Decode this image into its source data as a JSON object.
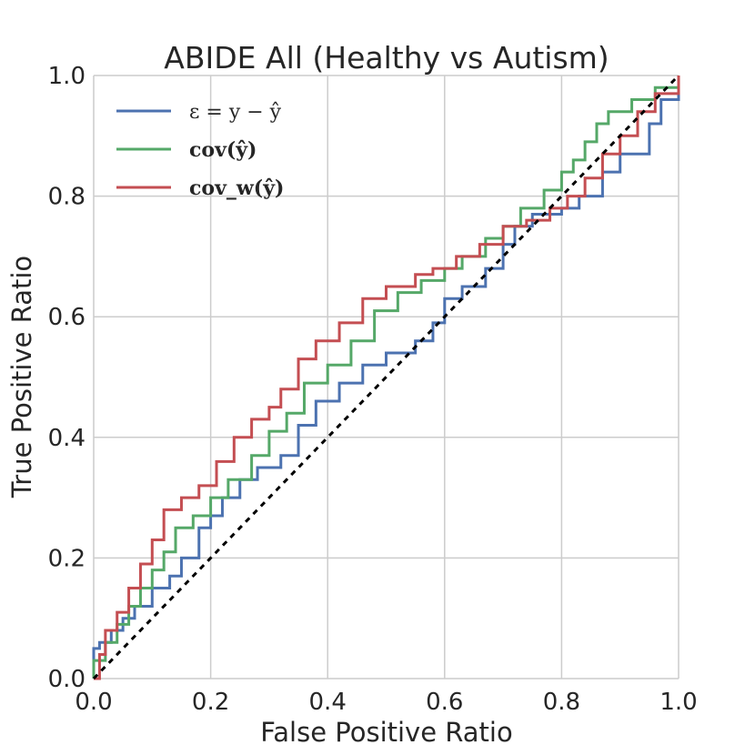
{
  "chart_data": {
    "type": "line",
    "title": "ABIDE All (Healthy vs Autism)",
    "xlabel": "False Positive Ratio",
    "ylabel": "True Positive Ratio",
    "xlim": [
      0,
      1
    ],
    "ylim": [
      0,
      1
    ],
    "xticks": [
      "0.0",
      "0.2",
      "0.4",
      "0.6",
      "0.8",
      "1.0"
    ],
    "yticks": [
      "0.0",
      "0.2",
      "0.4",
      "0.6",
      "0.8",
      "1.0"
    ],
    "grid": true,
    "legend_position": "top-left",
    "series": [
      {
        "name": "ε = y − ŷ",
        "color": "#4c72b0",
        "points": [
          [
            0,
            0
          ],
          [
            0,
            0.05
          ],
          [
            0.01,
            0.06
          ],
          [
            0.03,
            0.08
          ],
          [
            0.05,
            0.1
          ],
          [
            0.07,
            0.12
          ],
          [
            0.1,
            0.15
          ],
          [
            0.13,
            0.17
          ],
          [
            0.15,
            0.2
          ],
          [
            0.18,
            0.25
          ],
          [
            0.2,
            0.27
          ],
          [
            0.22,
            0.3
          ],
          [
            0.25,
            0.33
          ],
          [
            0.28,
            0.35
          ],
          [
            0.32,
            0.37
          ],
          [
            0.35,
            0.42
          ],
          [
            0.38,
            0.46
          ],
          [
            0.42,
            0.49
          ],
          [
            0.46,
            0.52
          ],
          [
            0.5,
            0.54
          ],
          [
            0.55,
            0.56
          ],
          [
            0.58,
            0.59
          ],
          [
            0.6,
            0.63
          ],
          [
            0.63,
            0.65
          ],
          [
            0.67,
            0.68
          ],
          [
            0.7,
            0.72
          ],
          [
            0.72,
            0.75
          ],
          [
            0.75,
            0.77
          ],
          [
            0.8,
            0.78
          ],
          [
            0.83,
            0.8
          ],
          [
            0.87,
            0.84
          ],
          [
            0.9,
            0.87
          ],
          [
            0.95,
            0.92
          ],
          [
            0.97,
            0.96
          ],
          [
            1,
            1
          ]
        ]
      },
      {
        "name": "cov(ŷ)",
        "color": "#55a868",
        "points": [
          [
            0,
            0
          ],
          [
            0,
            0.03
          ],
          [
            0.02,
            0.06
          ],
          [
            0.04,
            0.09
          ],
          [
            0.06,
            0.12
          ],
          [
            0.08,
            0.15
          ],
          [
            0.1,
            0.18
          ],
          [
            0.12,
            0.21
          ],
          [
            0.14,
            0.25
          ],
          [
            0.17,
            0.27
          ],
          [
            0.2,
            0.3
          ],
          [
            0.23,
            0.33
          ],
          [
            0.27,
            0.37
          ],
          [
            0.3,
            0.41
          ],
          [
            0.33,
            0.44
          ],
          [
            0.36,
            0.49
          ],
          [
            0.4,
            0.52
          ],
          [
            0.44,
            0.56
          ],
          [
            0.48,
            0.61
          ],
          [
            0.52,
            0.64
          ],
          [
            0.56,
            0.66
          ],
          [
            0.6,
            0.68
          ],
          [
            0.63,
            0.7
          ],
          [
            0.67,
            0.73
          ],
          [
            0.7,
            0.75
          ],
          [
            0.73,
            0.78
          ],
          [
            0.77,
            0.81
          ],
          [
            0.8,
            0.84
          ],
          [
            0.82,
            0.86
          ],
          [
            0.84,
            0.89
          ],
          [
            0.86,
            0.92
          ],
          [
            0.88,
            0.94
          ],
          [
            0.92,
            0.96
          ],
          [
            0.96,
            0.98
          ],
          [
            1,
            1
          ]
        ]
      },
      {
        "name": "cov_w(ŷ)",
        "color": "#c44e52",
        "points": [
          [
            0,
            0
          ],
          [
            0.01,
            0.04
          ],
          [
            0.02,
            0.08
          ],
          [
            0.04,
            0.11
          ],
          [
            0.06,
            0.15
          ],
          [
            0.08,
            0.19
          ],
          [
            0.1,
            0.23
          ],
          [
            0.12,
            0.28
          ],
          [
            0.15,
            0.3
          ],
          [
            0.18,
            0.32
          ],
          [
            0.21,
            0.36
          ],
          [
            0.24,
            0.4
          ],
          [
            0.27,
            0.43
          ],
          [
            0.3,
            0.45
          ],
          [
            0.32,
            0.48
          ],
          [
            0.35,
            0.53
          ],
          [
            0.38,
            0.56
          ],
          [
            0.42,
            0.59
          ],
          [
            0.46,
            0.63
          ],
          [
            0.5,
            0.65
          ],
          [
            0.55,
            0.67
          ],
          [
            0.58,
            0.68
          ],
          [
            0.62,
            0.7
          ],
          [
            0.66,
            0.72
          ],
          [
            0.7,
            0.75
          ],
          [
            0.74,
            0.76
          ],
          [
            0.78,
            0.78
          ],
          [
            0.81,
            0.8
          ],
          [
            0.84,
            0.83
          ],
          [
            0.87,
            0.87
          ],
          [
            0.9,
            0.9
          ],
          [
            0.93,
            0.94
          ],
          [
            0.96,
            0.97
          ],
          [
            1,
            1
          ]
        ]
      },
      {
        "name": "",
        "color": "#000000",
        "style": "dotted",
        "points": [
          [
            0,
            0
          ],
          [
            1,
            1
          ]
        ]
      }
    ]
  }
}
